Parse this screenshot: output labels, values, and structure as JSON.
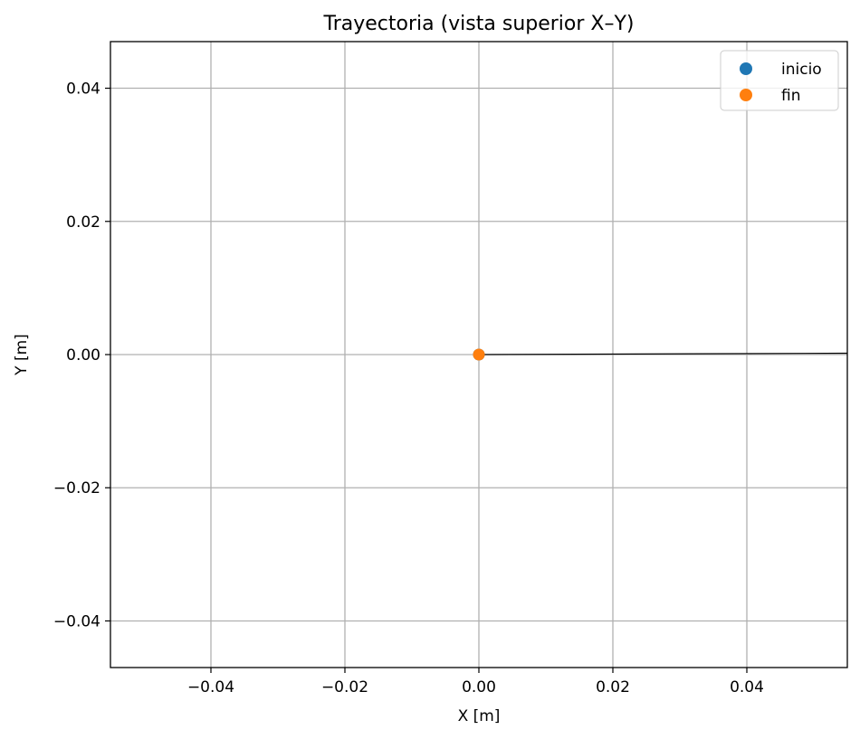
{
  "chart_data": {
    "type": "scatter",
    "title": "Trayectoria (vista superior X–Y)",
    "xlabel": "X [m]",
    "ylabel": "Y [m]",
    "xlim": [
      -0.055,
      0.055
    ],
    "ylim": [
      -0.047,
      0.047
    ],
    "xticks": [
      -0.04,
      -0.02,
      0.0,
      0.02,
      0.04
    ],
    "yticks": [
      -0.04,
      -0.02,
      0.0,
      0.02,
      0.04
    ],
    "xtick_labels": [
      "−0.04",
      "−0.02",
      "0.00",
      "0.02",
      "0.04"
    ],
    "ytick_labels": [
      "−0.04",
      "−0.02",
      "0.00",
      "0.02",
      "0.04"
    ],
    "grid": true,
    "legend_position": "top-right",
    "trajectory": {
      "x": [
        0.0,
        0.055
      ],
      "y": [
        0.0,
        0.0002
      ],
      "color": "#000000"
    },
    "series": [
      {
        "name": "inicio",
        "x": [
          0.0
        ],
        "y": [
          0.0
        ],
        "color": "#1f77b4"
      },
      {
        "name": "fin",
        "x": [
          0.0
        ],
        "y": [
          0.0
        ],
        "color": "#ff7f0e"
      }
    ]
  }
}
